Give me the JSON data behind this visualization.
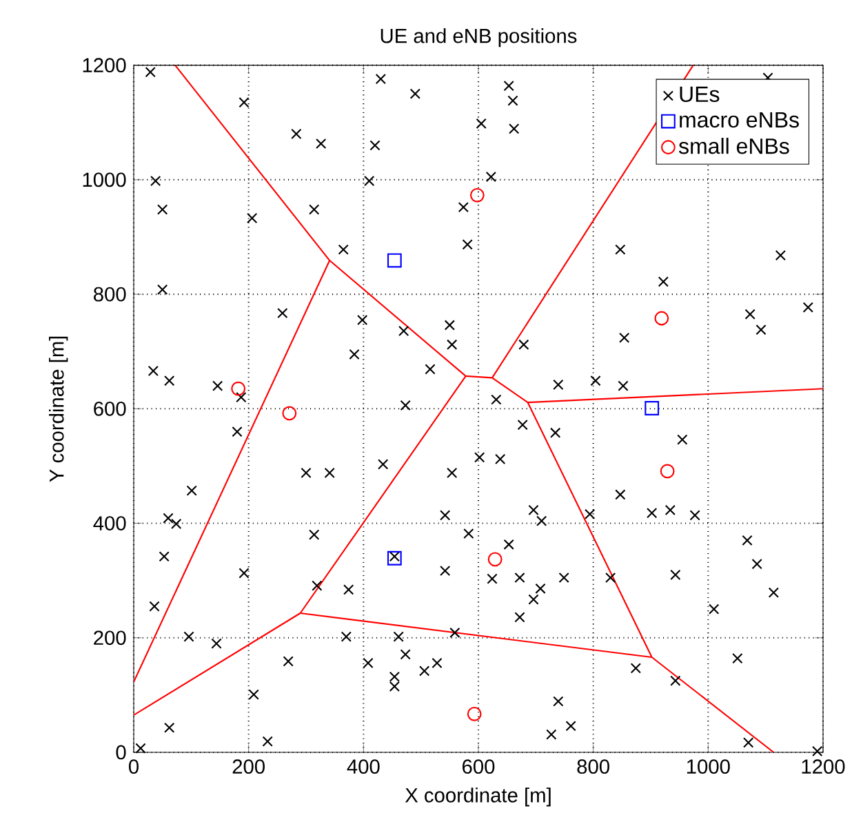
{
  "chart_data": {
    "type": "scatter",
    "title": "UE and eNB positions",
    "xlabel": "X coordinate [m]",
    "ylabel": "Y coordinate [m]",
    "xlim": [
      0,
      1200
    ],
    "ylim": [
      0,
      1200
    ],
    "xticks": [
      0,
      200,
      400,
      600,
      800,
      1000,
      1200
    ],
    "yticks": [
      0,
      200,
      400,
      600,
      800,
      1000,
      1200
    ],
    "grid": true,
    "legend": "top right",
    "series": [
      {
        "name": "UEs",
        "marker": "cross",
        "color": "#000000",
        "x": [
          29,
          192,
          283,
          326,
          430,
          490,
          420,
          605,
          38,
          50,
          314,
          206,
          410,
          574,
          581,
          365,
          50,
          259,
          398,
          470,
          550,
          554,
          384,
          516,
          34,
          62,
          146,
          187,
          473,
          653,
          660,
          662,
          622,
          1104,
          847,
          922,
          1126,
          1073,
          1092,
          1174,
          679,
          854,
          739,
          804,
          852,
          631,
          180,
          300,
          341,
          101,
          434,
          554,
          60,
          74,
          314,
          542,
          583,
          53,
          192,
          454,
          542,
          319,
          374,
          36,
          96,
          144,
          370,
          461,
          559,
          473,
          269,
          408,
          506,
          528,
          454,
          454,
          209,
          62,
          233,
          12,
          602,
          677,
          734,
          638,
          696,
          710,
          794,
          847,
          902,
          934,
          955,
          977,
          653,
          624,
          672,
          749,
          830,
          708,
          696,
          672,
          943,
          1068,
          1085,
          1114,
          1010,
          1051,
          874,
          943,
          739,
          761,
          727,
          1070,
          1190
        ],
        "values": [
          1188,
          1135,
          1080,
          1063,
          1176,
          1150,
          1060,
          1098,
          998,
          948,
          948,
          933,
          998,
          952,
          887,
          878,
          808,
          767,
          755,
          736,
          746,
          712,
          695,
          669,
          666,
          649,
          640,
          620,
          606,
          1164,
          1138,
          1089,
          1005,
          1178,
          878,
          822,
          868,
          765,
          738,
          777,
          712,
          724,
          642,
          649,
          640,
          616,
          560,
          488,
          488,
          457,
          503,
          488,
          409,
          399,
          380,
          414,
          382,
          342,
          313,
          342,
          317,
          291,
          284,
          255,
          202,
          190,
          202,
          202,
          209,
          171,
          159,
          156,
          142,
          156,
          132,
          115,
          101,
          43,
          19,
          7,
          515,
          572,
          558,
          512,
          423,
          404,
          416,
          450,
          418,
          423,
          546,
          414,
          363,
          303,
          305,
          305,
          305,
          286,
          267,
          236,
          310,
          370,
          329,
          279,
          250,
          164,
          147,
          125,
          89,
          46,
          31,
          17,
          2
        ]
      },
      {
        "name": "macro eNBs",
        "marker": "square",
        "color": "#0000ff",
        "x": [
          454,
          454,
          902
        ],
        "values": [
          859,
          339,
          601
        ]
      },
      {
        "name": "small eNBs",
        "marker": "circle",
        "color": "#ff0000",
        "x": [
          598,
          182,
          271,
          919,
          929,
          629,
          593
        ],
        "values": [
          973,
          635,
          592,
          758,
          491,
          337,
          67
        ]
      },
      {
        "type": "line",
        "color": "#ff0000",
        "x": [
          72,
          341,
          578,
          624,
          686,
          1200
        ],
        "values": [
          1200,
          859,
          657,
          654,
          611,
          635
        ]
      },
      {
        "type": "line",
        "color": "#ff0000",
        "x": [
          624,
          974
        ],
        "values": [
          654,
          1200
        ]
      },
      {
        "type": "line",
        "color": "#ff0000",
        "x": [
          341,
          0
        ],
        "values": [
          859,
          123
        ]
      },
      {
        "type": "line",
        "color": "#ff0000",
        "x": [
          578,
          290,
          0
        ],
        "values": [
          657,
          243,
          65
        ]
      },
      {
        "type": "line",
        "color": "#ff0000",
        "x": [
          686,
          902,
          1114
        ],
        "values": [
          611,
          166,
          0
        ]
      },
      {
        "type": "line",
        "color": "#ff0000",
        "x": [
          290,
          902
        ],
        "values": [
          243,
          166
        ]
      }
    ]
  }
}
